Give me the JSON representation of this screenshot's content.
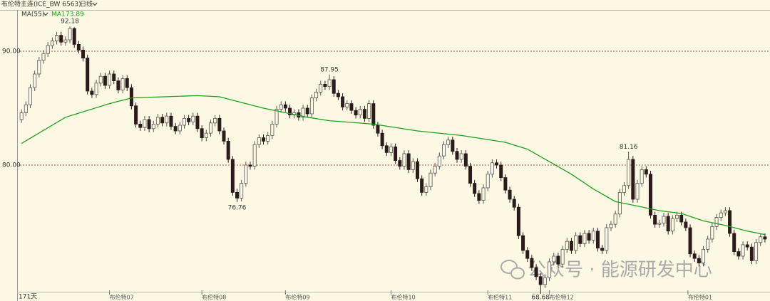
{
  "chart_data": {
    "type": "candlestick",
    "title": "布伦特主连(ICE_BW 6563)",
    "period": "日线",
    "days_label": "171天",
    "watermark": "公众号 · 能源研发中心",
    "up_color": "#fdf8e3",
    "up_stroke": "#555555",
    "down_color": "#2b1b1b",
    "xlim": [
      -1,
      169.5
    ],
    "ylim": [
      68.06,
      93.625
    ],
    "yticks": [
      {
        "value": 90,
        "label": "90.00"
      },
      {
        "value": 80,
        "label": "80.00"
      }
    ],
    "grid": true,
    "xticks": [
      {
        "value": 20,
        "label": "布伦特07"
      },
      {
        "value": 41,
        "label": "布伦特08"
      },
      {
        "value": 60,
        "label": "布伦特09"
      },
      {
        "value": 84,
        "label": "布伦特10"
      },
      {
        "value": 106,
        "label": "布伦特11"
      },
      {
        "value": 120,
        "label": "布伦特12"
      },
      {
        "value": 151.5,
        "label": "布伦特01"
      }
    ],
    "open": [
      84.0,
      84.6,
      85.3,
      86.8,
      88.0,
      89.2,
      89.8,
      90.5,
      90.9,
      91.4,
      90.8,
      91.0,
      92.0,
      90.6,
      90.1,
      89.4,
      86.5,
      86.2,
      87.2,
      87.8,
      87.0,
      88.0,
      87.4,
      86.6,
      87.6,
      86.8,
      85.2,
      83.6,
      83.3,
      84.0,
      83.2,
      83.6,
      84.2,
      83.7,
      84.3,
      83.4,
      83.0,
      83.5,
      84.1,
      83.8,
      84.3,
      83.2,
      82.4,
      82.8,
      83.7,
      84.1,
      83.0,
      82.1,
      80.5,
      77.6,
      77.1,
      78.4,
      80.0,
      79.9,
      81.8,
      82.4,
      82.1,
      82.6,
      83.6,
      84.9,
      85.3,
      85.0,
      84.4,
      84.6,
      84.2,
      85.0,
      84.5,
      85.9,
      86.4,
      87.1,
      86.9,
      87.5,
      86.3,
      86.0,
      85.1,
      85.4,
      84.8,
      84.4,
      84.9,
      84.1,
      85.4,
      83.5,
      82.8,
      81.7,
      81.1,
      81.6,
      80.4,
      79.9,
      81.0,
      79.6,
      80.3,
      78.8,
      77.6,
      78.1,
      79.3,
      79.9,
      80.8,
      81.8,
      82.2,
      81.2,
      80.5,
      81.0,
      79.9,
      78.4,
      77.5,
      76.9,
      78.0,
      79.2,
      80.2,
      80.0,
      78.9,
      77.8,
      77.0,
      76.3,
      73.8,
      72.5,
      71.8,
      71.0,
      70.2,
      69.5,
      70.1,
      71.5,
      72.0,
      71.3,
      72.6,
      73.3,
      72.5,
      73.8,
      73.1,
      74.0,
      73.4,
      74.2,
      72.7,
      72.5,
      74.5,
      74.8,
      75.7,
      77.6,
      78.2,
      80.5,
      77.0,
      78.4,
      79.6,
      79.2,
      75.6,
      74.8,
      74.9,
      75.5,
      74.2,
      75.3,
      75.6,
      75.0,
      74.5,
      72.2,
      71.8,
      71.4,
      72.6,
      73.5,
      74.6,
      75.4,
      75.8,
      76.0,
      74.0,
      72.4,
      72.0,
      73.0,
      72.8,
      71.6,
      73.2,
      73.7
    ],
    "high": [
      84.9,
      85.6,
      87.1,
      88.3,
      89.5,
      90.1,
      90.8,
      91.2,
      91.7,
      91.7,
      91.3,
      92.18,
      92.1,
      90.9,
      90.4,
      89.7,
      86.8,
      87.5,
      88.1,
      88.1,
      88.3,
      88.3,
      87.7,
      87.9,
      87.9,
      87.1,
      85.5,
      83.9,
      84.3,
      84.3,
      83.9,
      84.5,
      84.5,
      84.6,
      84.6,
      83.7,
      83.8,
      84.4,
      84.4,
      84.6,
      84.6,
      83.5,
      83.1,
      84.0,
      84.4,
      84.4,
      83.3,
      82.4,
      80.8,
      77.9,
      78.7,
      80.3,
      80.3,
      82.1,
      82.7,
      82.7,
      82.9,
      83.9,
      85.2,
      85.6,
      85.6,
      85.3,
      84.9,
      84.9,
      85.3,
      85.3,
      86.2,
      86.7,
      87.4,
      87.4,
      87.95,
      87.8,
      86.6,
      86.3,
      85.7,
      85.7,
      85.1,
      85.2,
      85.2,
      85.7,
      85.7,
      83.8,
      83.1,
      82.0,
      81.9,
      81.9,
      80.7,
      81.3,
      81.3,
      80.6,
      80.6,
      79.1,
      78.4,
      79.6,
      80.2,
      81.1,
      82.1,
      82.5,
      82.5,
      81.5,
      81.3,
      81.3,
      80.2,
      78.7,
      77.8,
      78.3,
      79.5,
      80.5,
      80.5,
      80.3,
      79.2,
      78.1,
      77.3,
      76.6,
      74.1,
      72.8,
      72.1,
      71.3,
      70.5,
      70.4,
      71.8,
      72.3,
      72.3,
      72.9,
      73.6,
      73.6,
      74.1,
      74.1,
      74.3,
      74.3,
      74.5,
      74.5,
      73.0,
      74.8,
      75.1,
      76.0,
      77.9,
      78.5,
      81.16,
      80.8,
      78.7,
      79.9,
      79.9,
      79.5,
      75.9,
      75.2,
      75.8,
      75.8,
      75.6,
      75.9,
      75.9,
      75.3,
      74.8,
      72.5,
      72.1,
      72.9,
      73.8,
      74.9,
      75.7,
      76.1,
      76.3,
      76.3,
      74.3,
      72.7,
      73.3,
      73.3,
      73.1,
      73.5,
      74.0,
      74.0
    ],
    "low": [
      83.7,
      84.3,
      85.0,
      86.5,
      87.7,
      88.9,
      89.5,
      90.2,
      90.6,
      90.5,
      90.5,
      90.7,
      90.3,
      89.8,
      89.1,
      86.2,
      85.9,
      85.9,
      86.9,
      86.7,
      86.7,
      87.1,
      86.3,
      86.3,
      86.5,
      84.9,
      83.3,
      83.0,
      83.0,
      82.9,
      82.9,
      83.3,
      83.4,
      83.4,
      83.1,
      82.7,
      82.7,
      83.2,
      83.5,
      83.5,
      82.9,
      82.1,
      82.1,
      82.5,
      83.4,
      82.7,
      81.8,
      80.2,
      77.3,
      76.76,
      76.8,
      78.1,
      79.6,
      79.6,
      81.5,
      81.8,
      81.8,
      82.3,
      83.3,
      84.6,
      84.7,
      84.1,
      84.1,
      83.9,
      83.9,
      84.2,
      84.2,
      85.6,
      86.1,
      86.6,
      86.6,
      86.0,
      85.7,
      84.8,
      84.8,
      84.5,
      84.1,
      84.1,
      83.8,
      83.8,
      83.2,
      82.5,
      81.4,
      80.8,
      80.8,
      80.1,
      79.6,
      79.6,
      79.3,
      79.3,
      78.5,
      77.3,
      77.3,
      77.8,
      79.0,
      79.6,
      80.5,
      81.5,
      80.9,
      80.2,
      80.2,
      79.6,
      78.1,
      77.2,
      76.6,
      76.6,
      77.7,
      78.9,
      79.7,
      78.6,
      77.5,
      76.7,
      76.0,
      73.5,
      72.2,
      71.5,
      70.7,
      69.9,
      68.68,
      69.2,
      69.8,
      71.2,
      71.0,
      71.0,
      72.3,
      72.2,
      72.2,
      72.8,
      72.8,
      73.1,
      73.1,
      72.4,
      72.2,
      72.2,
      74.2,
      74.5,
      75.4,
      77.3,
      77.9,
      76.7,
      76.7,
      78.1,
      78.9,
      75.3,
      74.5,
      74.5,
      74.6,
      73.9,
      73.9,
      75.0,
      74.7,
      74.2,
      71.9,
      71.5,
      71.1,
      71.1,
      72.3,
      73.2,
      74.3,
      75.1,
      75.5,
      73.7,
      72.1,
      71.7,
      71.7,
      72.5,
      71.3,
      71.3,
      72.9,
      73.2
    ],
    "close": [
      84.6,
      85.3,
      86.8,
      88.0,
      89.2,
      89.8,
      90.5,
      90.9,
      91.4,
      90.8,
      91.0,
      92.0,
      90.6,
      90.1,
      89.4,
      86.5,
      86.2,
      87.2,
      87.8,
      87.0,
      88.0,
      87.4,
      86.6,
      87.6,
      86.8,
      85.2,
      83.6,
      83.3,
      84.0,
      83.2,
      83.6,
      84.2,
      83.7,
      84.3,
      83.4,
      83.0,
      83.5,
      84.1,
      83.8,
      84.3,
      83.2,
      82.4,
      82.8,
      83.7,
      84.1,
      83.0,
      82.1,
      80.5,
      77.6,
      77.1,
      78.4,
      80.0,
      79.9,
      81.8,
      82.4,
      82.1,
      82.6,
      83.6,
      84.9,
      85.3,
      85.0,
      84.4,
      84.6,
      84.2,
      85.0,
      84.5,
      85.9,
      86.4,
      87.1,
      86.9,
      87.5,
      86.3,
      86.0,
      85.1,
      85.4,
      84.8,
      84.4,
      84.9,
      84.1,
      85.4,
      83.5,
      82.8,
      81.7,
      81.1,
      81.6,
      80.4,
      79.9,
      81.0,
      79.6,
      80.3,
      78.8,
      77.6,
      78.1,
      79.3,
      79.9,
      80.8,
      81.8,
      82.2,
      81.2,
      80.5,
      81.0,
      79.9,
      78.4,
      77.5,
      76.9,
      78.0,
      79.2,
      80.2,
      80.0,
      78.9,
      77.8,
      77.0,
      76.3,
      73.8,
      72.5,
      71.8,
      71.0,
      70.2,
      69.5,
      70.1,
      71.5,
      72.0,
      71.3,
      72.6,
      73.3,
      72.5,
      73.8,
      73.1,
      74.0,
      73.4,
      74.2,
      72.7,
      72.5,
      74.5,
      74.8,
      75.7,
      77.6,
      78.2,
      80.5,
      77.0,
      78.4,
      79.6,
      79.2,
      75.6,
      74.8,
      74.9,
      75.5,
      74.2,
      75.3,
      75.6,
      75.0,
      74.5,
      72.2,
      71.8,
      71.4,
      72.6,
      73.5,
      74.6,
      75.4,
      75.8,
      76.0,
      74.0,
      72.4,
      72.0,
      73.0,
      72.8,
      71.6,
      73.2,
      73.7,
      73.5
    ],
    "high_labels": [
      92.18,
      87.95,
      81.16
    ],
    "low_labels": [
      76.76,
      68.68
    ],
    "ma": {
      "name": "MA(55)",
      "label": "MA1",
      "color": "#1ea01e",
      "x": [
        0,
        10,
        20,
        25,
        40,
        45,
        55,
        65,
        70,
        80,
        90,
        100,
        110,
        115,
        120,
        125,
        130,
        135,
        140,
        145,
        150,
        155,
        160,
        165,
        169
      ],
      "values": [
        81.9,
        84.2,
        85.4,
        85.9,
        86.1,
        86.0,
        85.0,
        84.2,
        83.9,
        83.6,
        83.0,
        82.6,
        82.0,
        81.4,
        80.3,
        79.2,
        77.9,
        76.8,
        76.4,
        76.0,
        75.75,
        75.1,
        74.7,
        74.2,
        73.89
      ]
    }
  }
}
